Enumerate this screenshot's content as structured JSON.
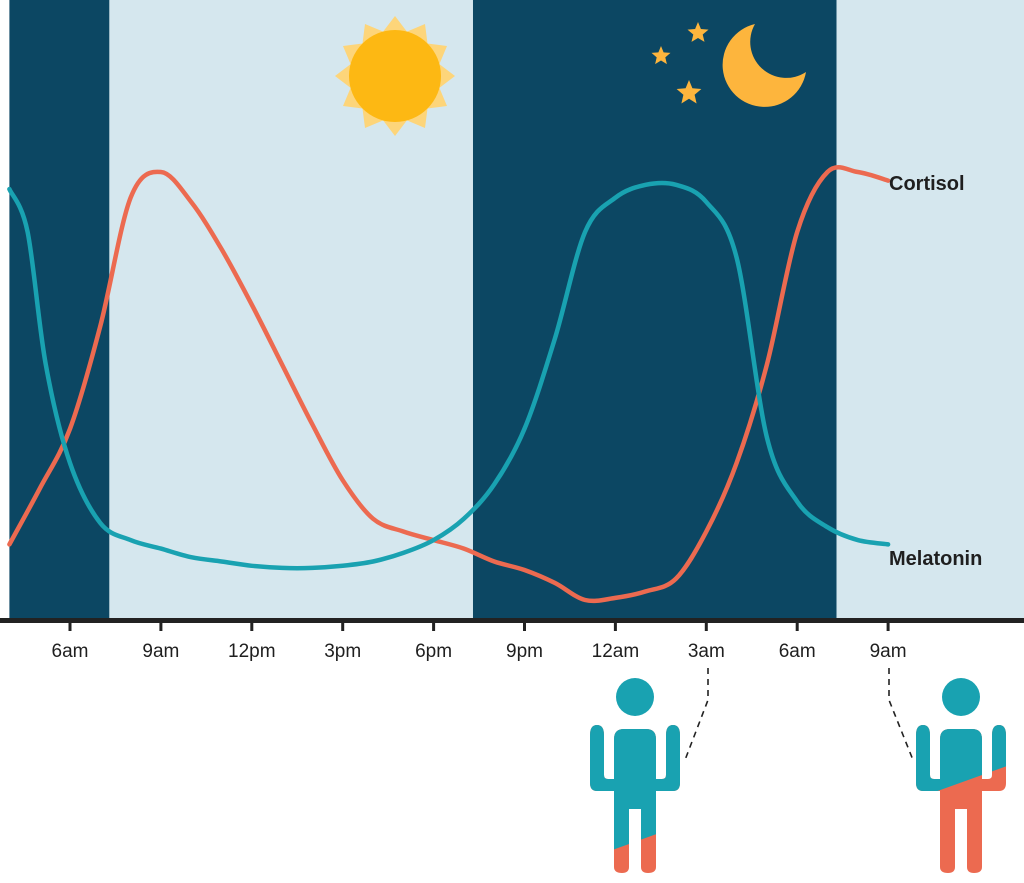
{
  "colors": {
    "night": "#0c4763",
    "day": "#d5e7ee",
    "cortisol": "#ec6a50",
    "melatonin": "#19a2b1",
    "sun": "#fdb813",
    "sun_rays": "#fdd57a",
    "moon": "#fdb53d",
    "axis": "#222222"
  },
  "icons": [
    "sun-icon",
    "moon-icon",
    "star-icon",
    "person-icon"
  ],
  "chart_data": {
    "type": "line",
    "xlabel": "",
    "ylabel": "",
    "x_ticks": [
      "6am",
      "9am",
      "12pm",
      "3pm",
      "6pm",
      "9pm",
      "12am",
      "3am",
      "6am",
      "9am"
    ],
    "xlim_hours": [
      4,
      37.5
    ],
    "ylim": [
      0,
      1
    ],
    "grid": false,
    "legend": "labels at line ends, right",
    "bands": [
      {
        "phase": "night",
        "from": 4,
        "to": 7.3
      },
      {
        "phase": "day",
        "from": 7.3,
        "to": 19.3
      },
      {
        "phase": "night",
        "from": 19.3,
        "to": 31.3
      },
      {
        "phase": "day",
        "from": 31.3,
        "to": 37.5
      }
    ],
    "series": [
      {
        "name": "Cortisol",
        "x": [
          4,
          5,
          6,
          7,
          8,
          9,
          10,
          11,
          12,
          13,
          14,
          15,
          16,
          17,
          18,
          19,
          20,
          21,
          22,
          23,
          24,
          25,
          26,
          27,
          28,
          29,
          30,
          31,
          32,
          33
        ],
        "values": [
          0.13,
          0.26,
          0.4,
          0.64,
          0.94,
          1.0,
          0.93,
          0.82,
          0.69,
          0.55,
          0.41,
          0.28,
          0.19,
          0.16,
          0.14,
          0.12,
          0.09,
          0.07,
          0.04,
          0.0,
          0.005,
          0.02,
          0.05,
          0.16,
          0.32,
          0.55,
          0.86,
          1.0,
          1.0,
          0.98
        ]
      },
      {
        "name": "Melatonin",
        "x": [
          4,
          4.6,
          5.2,
          6,
          7,
          8,
          9,
          10,
          11,
          12,
          13,
          14,
          15,
          16,
          17,
          18,
          19,
          20,
          21,
          22,
          23,
          24,
          25,
          26,
          27,
          28,
          29,
          30,
          31,
          32,
          33
        ],
        "values": [
          0.96,
          0.86,
          0.55,
          0.32,
          0.18,
          0.14,
          0.12,
          0.1,
          0.09,
          0.08,
          0.075,
          0.075,
          0.08,
          0.09,
          0.11,
          0.14,
          0.19,
          0.27,
          0.4,
          0.61,
          0.86,
          0.94,
          0.97,
          0.97,
          0.93,
          0.8,
          0.38,
          0.23,
          0.17,
          0.14,
          0.13
        ]
      }
    ]
  },
  "annotations": [
    {
      "name": "person-3am",
      "at_tick": "3am",
      "melatonin_share": 0.75
    },
    {
      "name": "person-9am",
      "at_tick": "9am",
      "melatonin_share": 0.25
    }
  ]
}
